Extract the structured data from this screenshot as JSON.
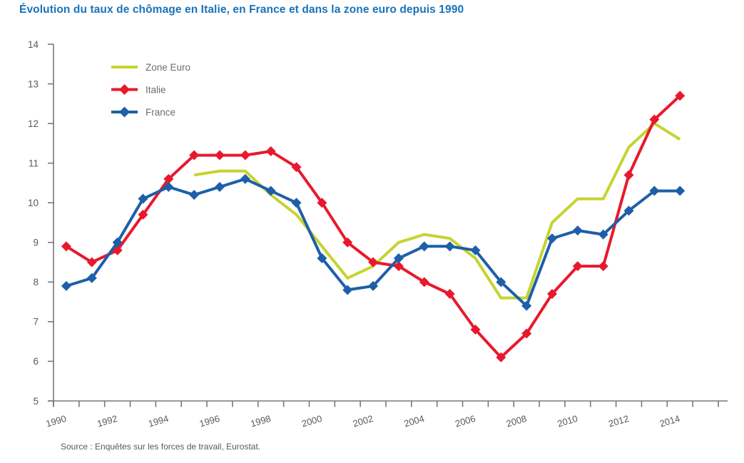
{
  "title": "Évolution du taux de chômage en Italie, en France et dans la zone euro depuis 1990",
  "source": "Source : Enquêtes sur les forces de travail, Eurostat.",
  "colors": {
    "title_text": "#1b72b9",
    "axis_line": "#77787b",
    "axis_text": "#595a5c",
    "legend_text": "#6d6e71",
    "source_text": "#58595b",
    "zone_euro": "#c6d330",
    "italie": "#e8192c",
    "france": "#1d5fa8",
    "background": "#ffffff"
  },
  "chart_data": {
    "type": "line",
    "title": "Évolution du taux de chômage en Italie, en France et dans la zone euro depuis 1990",
    "xlabel": "",
    "ylabel": "",
    "ylim": [
      5,
      14
    ],
    "y_ticks": [
      5,
      6,
      7,
      8,
      9,
      10,
      11,
      12,
      13,
      14
    ],
    "x": [
      1990,
      1991,
      1992,
      1993,
      1994,
      1995,
      1996,
      1997,
      1998,
      1999,
      2000,
      2001,
      2002,
      2003,
      2004,
      2005,
      2006,
      2007,
      2008,
      2009,
      2010,
      2011,
      2012,
      2013,
      2014
    ],
    "x_labeled_ticks": [
      1990,
      1992,
      1994,
      1996,
      1998,
      2000,
      2002,
      2004,
      2006,
      2008,
      2010,
      2012,
      2014
    ],
    "grid": false,
    "legend_position": "top-left",
    "series": [
      {
        "name": "Zone Euro",
        "color_key": "zone_euro",
        "marker": "none",
        "values": [
          null,
          null,
          null,
          null,
          null,
          10.7,
          10.8,
          10.8,
          10.2,
          9.7,
          8.9,
          8.1,
          8.4,
          9.0,
          9.2,
          9.1,
          8.6,
          7.6,
          7.6,
          9.5,
          10.1,
          10.1,
          11.4,
          12.0,
          11.6
        ]
      },
      {
        "name": "Italie",
        "color_key": "italie",
        "marker": "diamond",
        "values": [
          8.9,
          8.5,
          8.8,
          9.7,
          10.6,
          11.2,
          11.2,
          11.2,
          11.3,
          10.9,
          10.0,
          9.0,
          8.5,
          8.4,
          8.0,
          7.7,
          6.8,
          6.1,
          6.7,
          7.7,
          8.4,
          8.4,
          10.7,
          12.1,
          12.7
        ]
      },
      {
        "name": "France",
        "color_key": "france",
        "marker": "diamond",
        "values": [
          7.9,
          8.1,
          9.0,
          10.1,
          10.4,
          10.2,
          10.4,
          10.6,
          10.3,
          10.0,
          8.6,
          7.8,
          7.9,
          8.6,
          8.9,
          8.9,
          8.8,
          8.0,
          7.4,
          9.1,
          9.3,
          9.2,
          9.8,
          10.3,
          10.3
        ]
      }
    ]
  }
}
